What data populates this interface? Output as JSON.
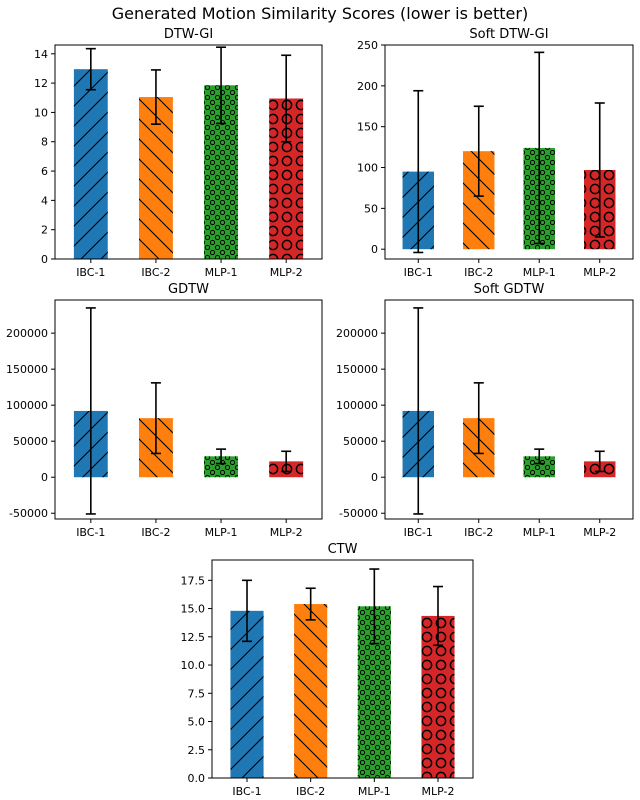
{
  "figure": {
    "suptitle": "Generated Motion Similarity Scores (lower is better)"
  },
  "chart_data": [
    {
      "type": "bar",
      "title": "DTW-GI",
      "categories": [
        "IBC-1",
        "IBC-2",
        "MLP-1",
        "MLP-2"
      ],
      "values": [
        12.95,
        11.05,
        11.85,
        10.95
      ],
      "errors": [
        1.4,
        1.85,
        2.6,
        2.95
      ],
      "ylim": [
        0,
        14.6
      ],
      "yticks": [
        0,
        2,
        4,
        6,
        8,
        10,
        12,
        14
      ],
      "colors": [
        "#1f77b4",
        "#ff7f0e",
        "#2ca02c",
        "#d62728"
      ],
      "hatches": [
        "slash",
        "backslash",
        "dots",
        "circles"
      ],
      "grid": false
    },
    {
      "type": "bar",
      "title": "Soft DTW-GI",
      "categories": [
        "IBC-1",
        "IBC-2",
        "MLP-1",
        "MLP-2"
      ],
      "values": [
        95,
        120,
        124,
        97
      ],
      "errors": [
        99,
        55,
        117,
        82
      ],
      "ylim": [
        -12,
        250
      ],
      "yticks": [
        0,
        50,
        100,
        150,
        200,
        250
      ],
      "colors": [
        "#1f77b4",
        "#ff7f0e",
        "#2ca02c",
        "#d62728"
      ],
      "hatches": [
        "slash",
        "backslash",
        "dots",
        "circles"
      ],
      "grid": false
    },
    {
      "type": "bar",
      "title": "GDTW",
      "categories": [
        "IBC-1",
        "IBC-2",
        "MLP-1",
        "MLP-2"
      ],
      "values": [
        92000,
        82000,
        29000,
        22000
      ],
      "errors": [
        143000,
        49000,
        10000,
        14000
      ],
      "ylim": [
        -58000,
        246000
      ],
      "yticks": [
        -50000,
        0,
        50000,
        100000,
        150000,
        200000
      ],
      "colors": [
        "#1f77b4",
        "#ff7f0e",
        "#2ca02c",
        "#d62728"
      ],
      "hatches": [
        "slash",
        "backslash",
        "dots",
        "circles"
      ],
      "grid": false
    },
    {
      "type": "bar",
      "title": "Soft GDTW",
      "categories": [
        "IBC-1",
        "IBC-2",
        "MLP-1",
        "MLP-2"
      ],
      "values": [
        92000,
        82000,
        29000,
        22000
      ],
      "errors": [
        143000,
        49000,
        10000,
        14000
      ],
      "ylim": [
        -58000,
        246000
      ],
      "yticks": [
        -50000,
        0,
        50000,
        100000,
        150000,
        200000
      ],
      "colors": [
        "#1f77b4",
        "#ff7f0e",
        "#2ca02c",
        "#d62728"
      ],
      "hatches": [
        "slash",
        "backslash",
        "dots",
        "circles"
      ],
      "grid": false
    },
    {
      "type": "bar",
      "title": "CTW",
      "categories": [
        "IBC-1",
        "IBC-2",
        "MLP-1",
        "MLP-2"
      ],
      "values": [
        14.8,
        15.4,
        15.2,
        14.35
      ],
      "errors": [
        2.7,
        1.4,
        3.3,
        2.6
      ],
      "ylim": [
        0,
        19.3
      ],
      "yticks": [
        0.0,
        2.5,
        5.0,
        7.5,
        10.0,
        12.5,
        15.0,
        17.5
      ],
      "ytick_decimals": 1,
      "colors": [
        "#1f77b4",
        "#ff7f0e",
        "#2ca02c",
        "#d62728"
      ],
      "hatches": [
        "slash",
        "backslash",
        "dots",
        "circles"
      ],
      "grid": false
    }
  ]
}
